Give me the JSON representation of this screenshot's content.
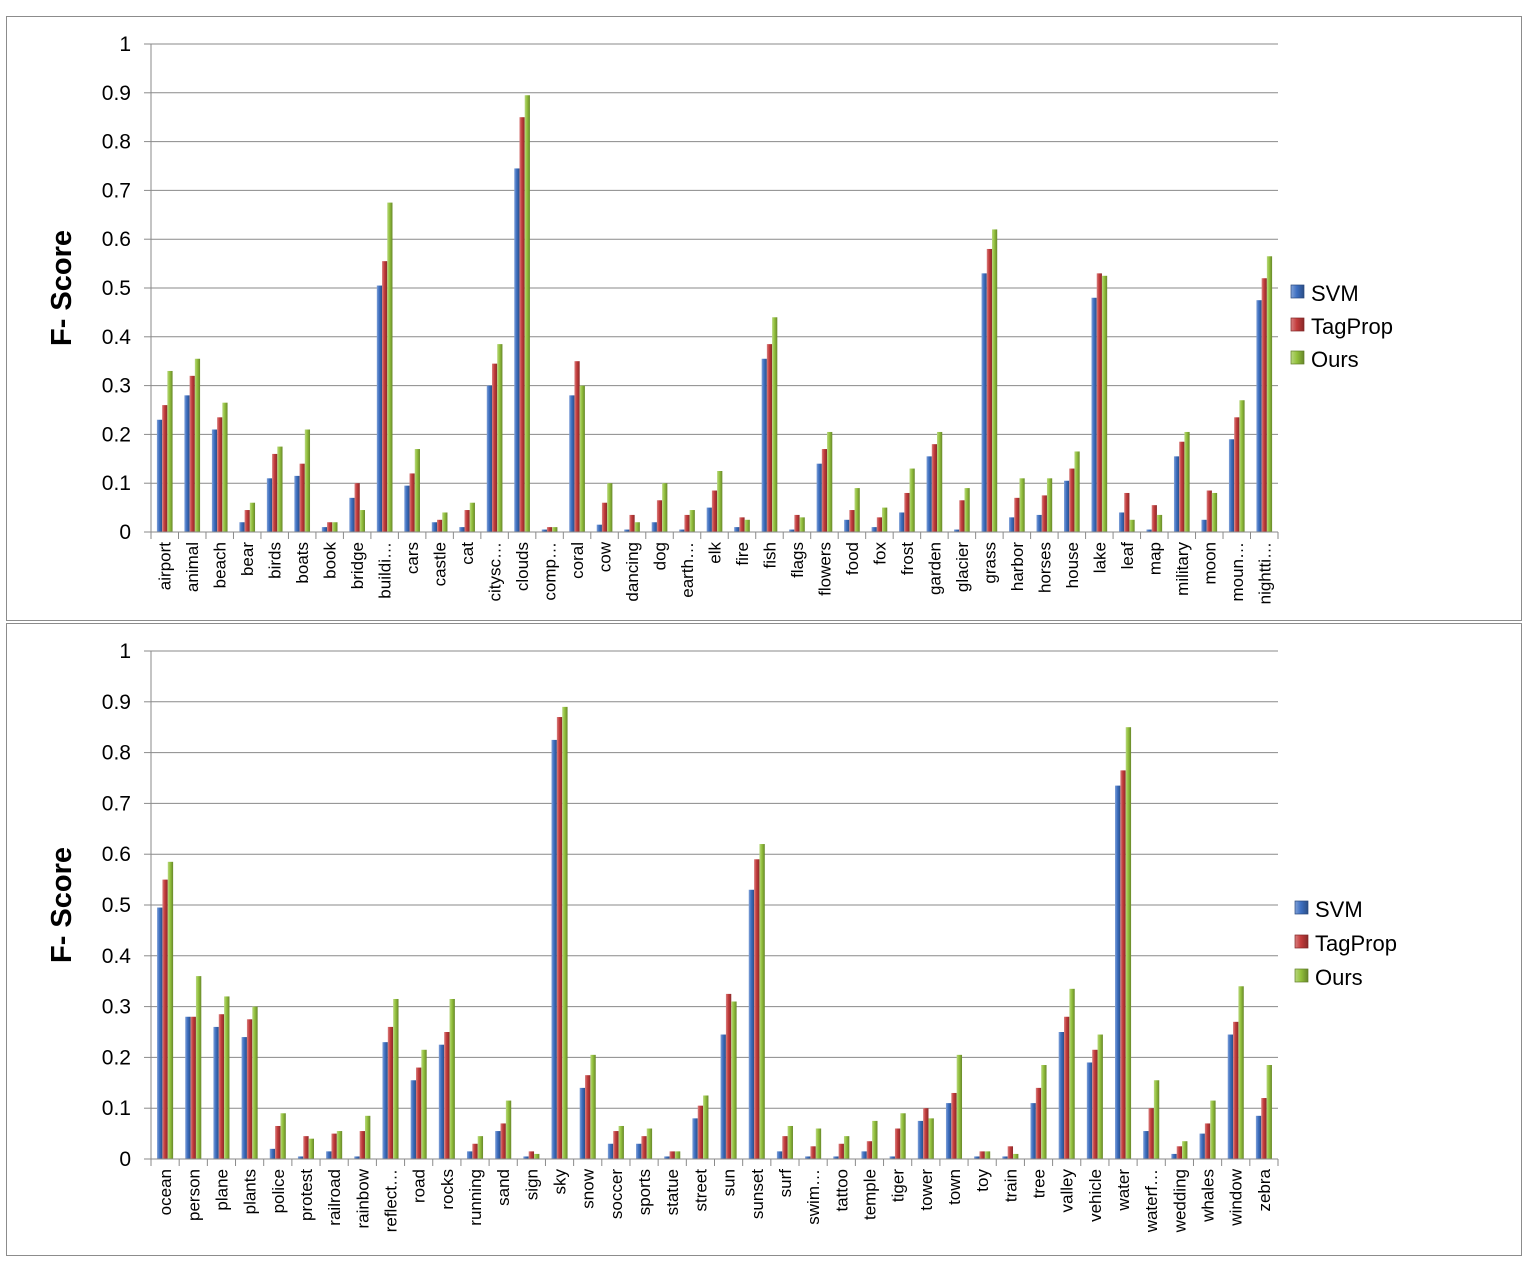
{
  "chart_data": [
    {
      "type": "bar",
      "ylabel": "F- Score",
      "ylim": [
        0,
        1
      ],
      "yticks": [
        "0",
        "0.1",
        "0.2",
        "0.3",
        "0.4",
        "0.5",
        "0.6",
        "0.7",
        "0.8",
        "0.9",
        "1"
      ],
      "grid": true,
      "legend_position": "right",
      "categories": [
        "airport",
        "animal",
        "beach",
        "bear",
        "birds",
        "boats",
        "book",
        "bridge",
        "buildi…",
        "cars",
        "castle",
        "cat",
        "citysc…",
        "clouds",
        "comp…",
        "coral",
        "cow",
        "dancing",
        "dog",
        "earth…",
        "elk",
        "fire",
        "fish",
        "flags",
        "flowers",
        "food",
        "fox",
        "frost",
        "garden",
        "glacier",
        "grass",
        "harbor",
        "horses",
        "house",
        "lake",
        "leaf",
        "map",
        "military",
        "moon",
        "moun…",
        "nightti…"
      ],
      "series": [
        {
          "name": "SVM",
          "color": "#3d6fc1",
          "values": [
            0.23,
            0.28,
            0.21,
            0.02,
            0.11,
            0.115,
            0.01,
            0.07,
            0.505,
            0.095,
            0.02,
            0.01,
            0.3,
            0.745,
            0.005,
            0.28,
            0.015,
            0.005,
            0.02,
            0.005,
            0.05,
            0.01,
            0.355,
            0.005,
            0.14,
            0.025,
            0.01,
            0.04,
            0.155,
            0.005,
            0.53,
            0.03,
            0.035,
            0.105,
            0.48,
            0.04,
            0.005,
            0.155,
            0.025,
            0.19,
            0.475
          ]
        },
        {
          "name": "TagProp",
          "color": "#c33b3b",
          "values": [
            0.26,
            0.32,
            0.235,
            0.045,
            0.16,
            0.14,
            0.02,
            0.1,
            0.555,
            0.12,
            0.025,
            0.045,
            0.345,
            0.85,
            0.01,
            0.35,
            0.06,
            0.035,
            0.065,
            0.035,
            0.085,
            0.03,
            0.385,
            0.035,
            0.17,
            0.045,
            0.03,
            0.08,
            0.18,
            0.065,
            0.58,
            0.07,
            0.075,
            0.13,
            0.53,
            0.08,
            0.055,
            0.185,
            0.085,
            0.235,
            0.52
          ]
        },
        {
          "name": "Ours",
          "color": "#93c13c",
          "values": [
            0.33,
            0.355,
            0.265,
            0.06,
            0.175,
            0.21,
            0.02,
            0.045,
            0.675,
            0.17,
            0.04,
            0.06,
            0.385,
            0.895,
            0.01,
            0.3,
            0.1,
            0.02,
            0.1,
            0.045,
            0.125,
            0.025,
            0.44,
            0.03,
            0.205,
            0.09,
            0.05,
            0.13,
            0.205,
            0.09,
            0.62,
            0.11,
            0.11,
            0.165,
            0.525,
            0.025,
            0.035,
            0.205,
            0.08,
            0.27,
            0.565
          ]
        }
      ]
    },
    {
      "type": "bar",
      "ylabel": "F- Score",
      "ylim": [
        0,
        1
      ],
      "yticks": [
        "0",
        "0.1",
        "0.2",
        "0.3",
        "0.4",
        "0.5",
        "0.6",
        "0.7",
        "0.8",
        "0.9",
        "1"
      ],
      "grid": true,
      "legend_position": "right",
      "categories": [
        "ocean",
        "person",
        "plane",
        "plants",
        "police",
        "protest",
        "railroad",
        "rainbow",
        "reflect…",
        "road",
        "rocks",
        "running",
        "sand",
        "sign",
        "sky",
        "snow",
        "soccer",
        "sports",
        "statue",
        "street",
        "sun",
        "sunset",
        "surf",
        "swim…",
        "tattoo",
        "temple",
        "tiger",
        "tower",
        "town",
        "toy",
        "train",
        "tree",
        "valley",
        "vehicle",
        "water",
        "waterf…",
        "wedding",
        "whales",
        "window",
        "zebra"
      ],
      "series": [
        {
          "name": "SVM",
          "color": "#3d6fc1",
          "values": [
            0.495,
            0.28,
            0.26,
            0.24,
            0.02,
            0.005,
            0.015,
            0.005,
            0.23,
            0.155,
            0.225,
            0.015,
            0.055,
            0.005,
            0.825,
            0.14,
            0.03,
            0.03,
            0.005,
            0.08,
            0.245,
            0.53,
            0.015,
            0.005,
            0.005,
            0.015,
            0.005,
            0.075,
            0.11,
            0.005,
            0.005,
            0.11,
            0.25,
            0.19,
            0.735,
            0.055,
            0.01,
            0.05,
            0.245,
            0.085
          ]
        },
        {
          "name": "TagProp",
          "color": "#c33b3b",
          "values": [
            0.55,
            0.28,
            0.285,
            0.275,
            0.065,
            0.045,
            0.05,
            0.055,
            0.26,
            0.18,
            0.25,
            0.03,
            0.07,
            0.015,
            0.87,
            0.165,
            0.055,
            0.045,
            0.015,
            0.105,
            0.325,
            0.59,
            0.045,
            0.025,
            0.03,
            0.035,
            0.06,
            0.1,
            0.13,
            0.015,
            0.025,
            0.14,
            0.28,
            0.215,
            0.765,
            0.1,
            0.025,
            0.07,
            0.27,
            0.12
          ]
        },
        {
          "name": "Ours",
          "color": "#93c13c",
          "values": [
            0.585,
            0.36,
            0.32,
            0.3,
            0.09,
            0.04,
            0.055,
            0.085,
            0.315,
            0.215,
            0.315,
            0.045,
            0.115,
            0.01,
            0.89,
            0.205,
            0.065,
            0.06,
            0.015,
            0.125,
            0.31,
            0.62,
            0.065,
            0.06,
            0.045,
            0.075,
            0.09,
            0.08,
            0.205,
            0.015,
            0.01,
            0.185,
            0.335,
            0.245,
            0.85,
            0.155,
            0.035,
            0.115,
            0.34,
            0.185
          ]
        }
      ]
    }
  ]
}
